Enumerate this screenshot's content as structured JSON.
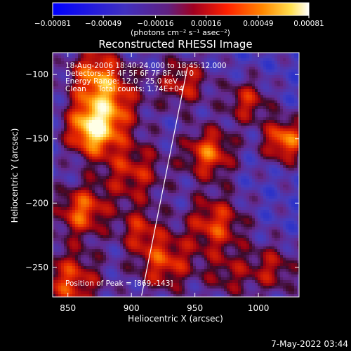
{
  "chart_data": {
    "type": "heatmap",
    "title": "Reconstructed RHESSI Image",
    "xlabel": "Heliocentric X (arcsec)",
    "ylabel": "Heliocentric Y (arcsec)",
    "xlim": [
      838,
      1032
    ],
    "ylim": [
      -273,
      -83
    ],
    "x_ticks": [
      850,
      900,
      950,
      1000
    ],
    "x_tick_labels": [
      "850",
      "900",
      "950",
      "1000"
    ],
    "y_ticks": [
      -100,
      -150,
      -200,
      -250
    ],
    "y_tick_labels": [
      "−100",
      "−150",
      "−200",
      "−250"
    ],
    "colorbar": {
      "range": [
        -0.00081,
        0.00081
      ],
      "ticks": [
        -0.00081,
        -0.00049,
        -0.00016,
        0.00016,
        0.00049,
        0.00081
      ],
      "tick_labels": [
        "−0.00081",
        "−0.00049",
        "−0.00016",
        "0.00016",
        "0.00049",
        "0.00081"
      ],
      "unit_label": "(photons cm⁻² s⁻¹ asec⁻²)"
    },
    "info_lines": [
      "18-Aug-2006 18:40:24.000 to 18:45:12.000",
      "Detectors: 3F 4F 5F 6F 7F 8F, Att 0",
      "Energy Range: 12.0 - 25.0 keV",
      "Clean     Total counts: 1.74E+04"
    ],
    "peak_label": "Position of Peak = [869,-143]",
    "limb_line": [
      [
        908,
        -272
      ],
      [
        944,
        -95
      ]
    ],
    "footer_timestamp": "7-May-2022 03:44",
    "grid": false,
    "legend": "none"
  }
}
